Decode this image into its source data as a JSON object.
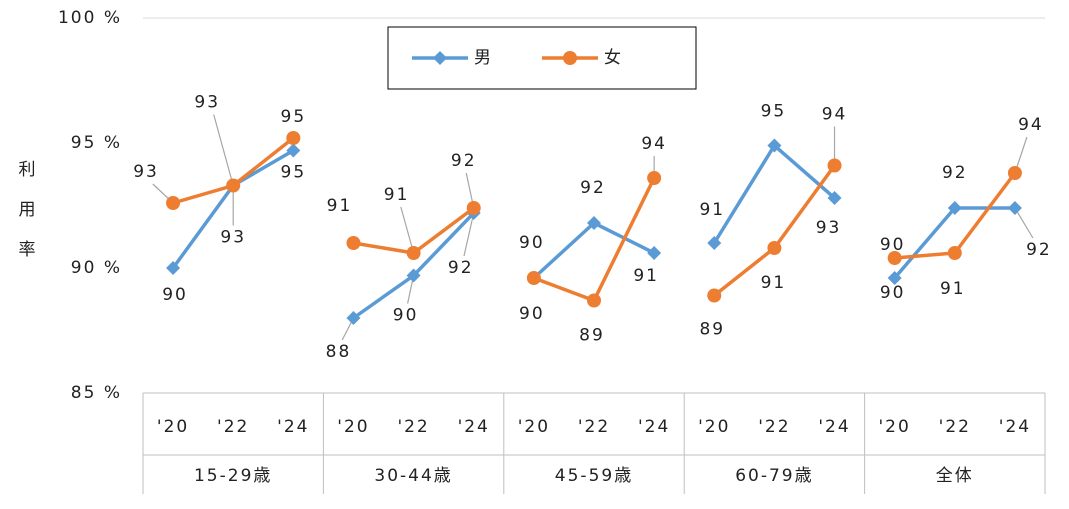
{
  "chart_data": {
    "type": "line",
    "y_label": "利用率",
    "groups": [
      "15-29歳",
      "30-44歳",
      "45-59歳",
      "60-79歳",
      "全体"
    ],
    "categories": [
      "'20",
      "'22",
      "'24",
      "'20",
      "'22",
      "'24",
      "'20",
      "'22",
      "'24",
      "'20",
      "'22",
      "'24",
      "'20",
      "'22",
      "'24"
    ],
    "series": [
      {
        "name": "男",
        "color": "#5b9bd5",
        "marker": "diamond",
        "values": [
          90.0,
          93.3,
          94.7,
          88.0,
          89.7,
          92.2,
          89.6,
          91.8,
          90.6,
          91.0,
          94.9,
          92.8,
          89.6,
          92.4,
          92.4
        ],
        "value_labels": [
          "90",
          "93",
          "95",
          "88",
          "90",
          "92",
          "90",
          "92",
          "91",
          "91",
          "95",
          "93",
          "90",
          "92",
          "92"
        ]
      },
      {
        "name": "女",
        "color": "#ed7d31",
        "marker": "circle",
        "values": [
          92.6,
          93.3,
          95.2,
          91.0,
          90.6,
          92.4,
          89.6,
          88.7,
          93.6,
          88.9,
          90.8,
          94.1,
          90.4,
          90.6,
          93.8
        ],
        "value_labels": [
          "93",
          "93",
          "95",
          "91",
          "91",
          "92",
          "90",
          "89",
          "94",
          "89",
          "91",
          "94",
          "90",
          "91",
          "94"
        ]
      }
    ],
    "ylim": [
      85,
      100
    ],
    "yticks": [
      {
        "value": 85,
        "label": "85 %"
      },
      {
        "value": 90,
        "label": "90 %"
      },
      {
        "value": 95,
        "label": "95 %"
      },
      {
        "value": 100,
        "label": "100 %"
      }
    ],
    "legend": "top"
  }
}
